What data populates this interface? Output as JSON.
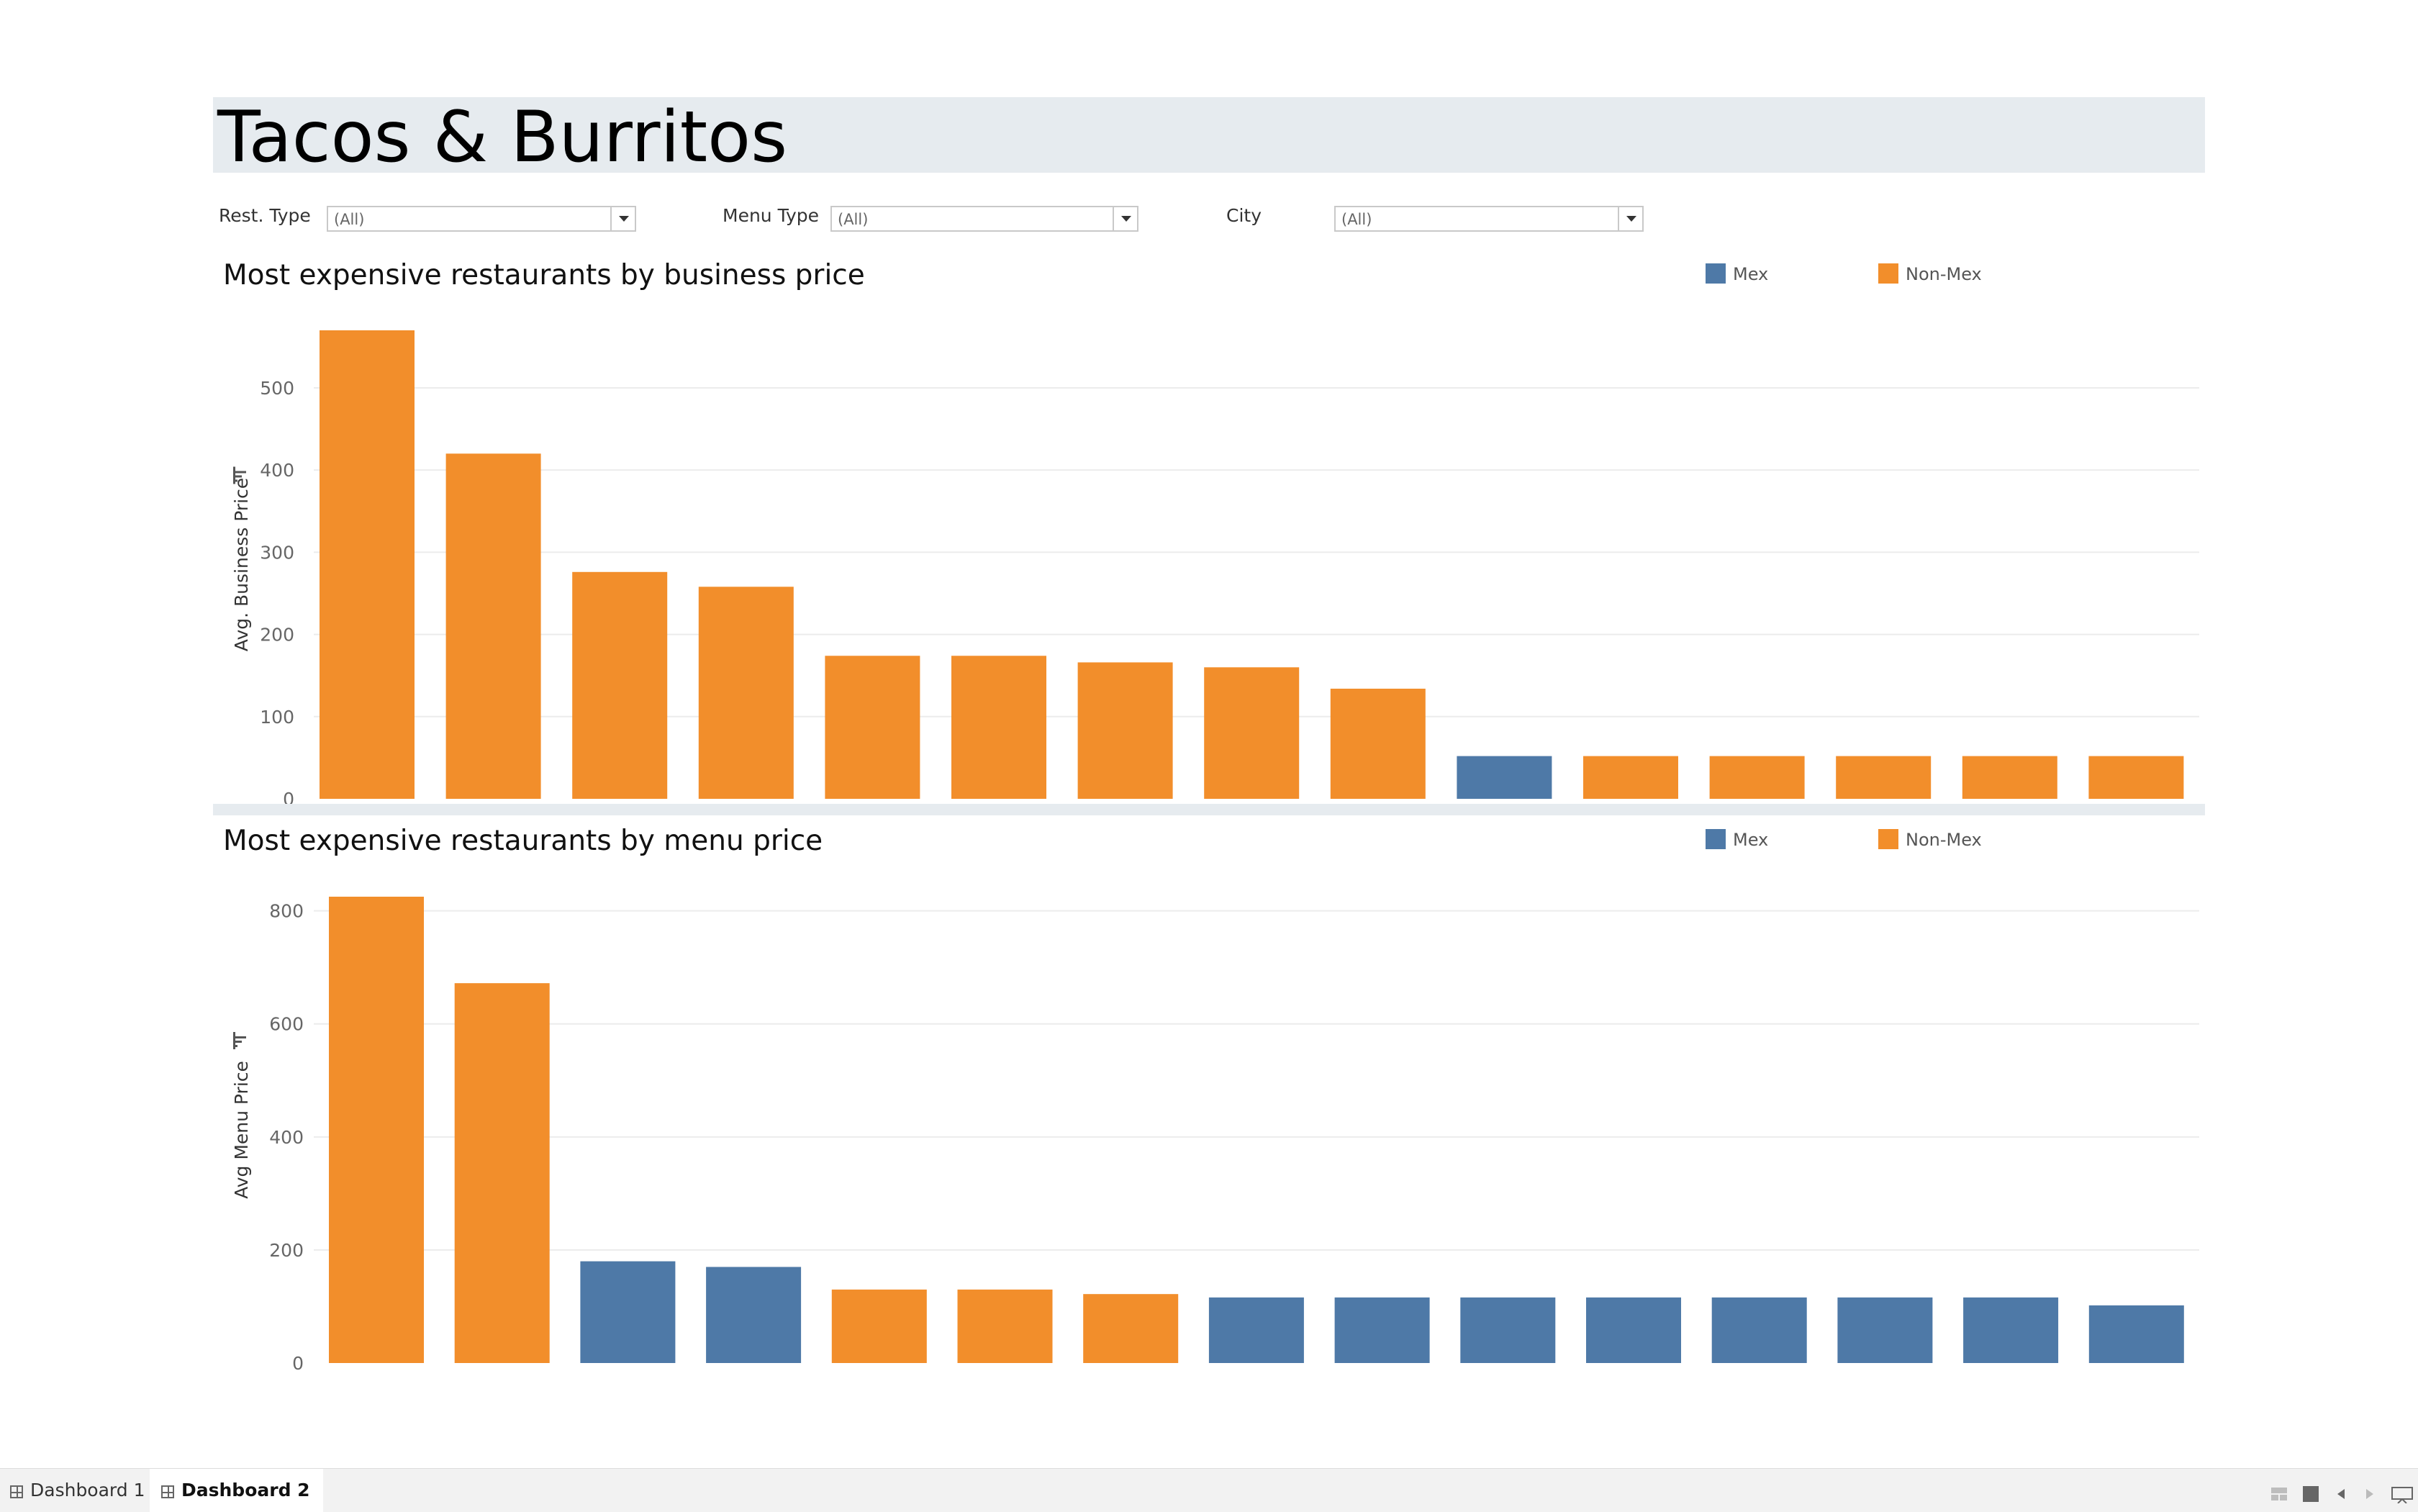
{
  "dashboard": {
    "title": "Tacos & Burritos"
  },
  "filters": [
    {
      "label": "Rest. Type",
      "value": "(All)"
    },
    {
      "label": "Menu Type",
      "value": "(All)"
    },
    {
      "label": "City",
      "value": "(All)"
    }
  ],
  "legend": [
    {
      "label": "Mex",
      "color": "#4e79a7"
    },
    {
      "label": "Non-Mex",
      "color": "#f28e2b"
    }
  ],
  "chart_data": [
    {
      "type": "bar",
      "title": "Most expensive restaurants by business price",
      "ylabel": "Avg. Business Price",
      "ylim": [
        0,
        570
      ],
      "yticks": [
        0,
        100,
        200,
        300,
        400,
        500
      ],
      "grid": true,
      "legend_position": "top-right",
      "values": [
        570,
        420,
        276,
        258,
        174,
        174,
        166,
        160,
        134,
        52,
        52,
        52,
        52,
        52,
        52
      ],
      "groups": [
        "Non-Mex",
        "Non-Mex",
        "Non-Mex",
        "Non-Mex",
        "Non-Mex",
        "Non-Mex",
        "Non-Mex",
        "Non-Mex",
        "Non-Mex",
        "Mex",
        "Non-Mex",
        "Non-Mex",
        "Non-Mex",
        "Non-Mex",
        "Non-Mex"
      ]
    },
    {
      "type": "bar",
      "title": "Most expensive restaurants by menu price",
      "ylabel": "Avg Menu Price",
      "ylim": [
        0,
        825
      ],
      "yticks": [
        0,
        200,
        400,
        600,
        800
      ],
      "grid": true,
      "legend_position": "top-right",
      "values": [
        825,
        672,
        180,
        170,
        130,
        130,
        122,
        116,
        116,
        116,
        116,
        116,
        116,
        116,
        102
      ],
      "groups": [
        "Non-Mex",
        "Non-Mex",
        "Mex",
        "Mex",
        "Non-Mex",
        "Non-Mex",
        "Non-Mex",
        "Mex",
        "Mex",
        "Mex",
        "Mex",
        "Mex",
        "Mex",
        "Mex",
        "Mex"
      ]
    }
  ],
  "tabs": [
    {
      "label": "Dashboard 1",
      "active": false
    },
    {
      "label": "Dashboard 2",
      "active": true
    }
  ]
}
